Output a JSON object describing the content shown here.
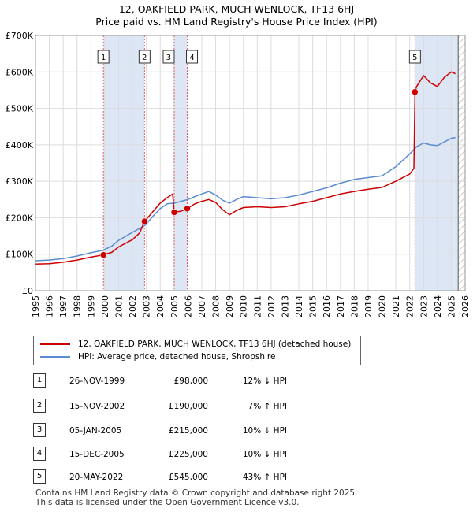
{
  "title_line1": "12, OAKFIELD PARK, MUCH WENLOCK, TF13 6HJ",
  "title_line2": "Price paid vs. HM Land Registry's House Price Index (HPI)",
  "colors": {
    "property": "#cc0000",
    "hpi": "#5b8bd0",
    "shade": "#dde6f5",
    "vline": "#e06060"
  },
  "legend": {
    "property": "12, OAKFIELD PARK, MUCH WENLOCK, TF13 6HJ (detached house)",
    "hpi": "HPI: Average price, detached house, Shropshire"
  },
  "transactions": [
    {
      "marker": "1",
      "date": "26-NOV-1999",
      "price": "£98,000",
      "hpi": "12% ↓ HPI"
    },
    {
      "marker": "2",
      "date": "15-NOV-2002",
      "price": "£190,000",
      "hpi": "7% ↑ HPI"
    },
    {
      "marker": "3",
      "date": "05-JAN-2005",
      "price": "£215,000",
      "hpi": "10% ↓ HPI"
    },
    {
      "marker": "4",
      "date": "15-DEC-2005",
      "price": "£225,000",
      "hpi": "10% ↓ HPI"
    },
    {
      "marker": "5",
      "date": "20-MAY-2022",
      "price": "£545,000",
      "hpi": "43% ↑ HPI"
    }
  ],
  "footer_line1": "Contains HM Land Registry data © Crown copyright and database right 2025.",
  "footer_line2": "This data is licensed under the Open Government Licence v3.0.",
  "chart_data": {
    "type": "line",
    "title": "12, OAKFIELD PARK, MUCH WENLOCK, TF13 6HJ — Price paid vs. HM Land Registry's House Price Index (HPI)",
    "xlabel": "",
    "ylabel": "",
    "xlim": [
      1995,
      2026
    ],
    "ylim": [
      0,
      700000
    ],
    "y_ticks": [
      0,
      100000,
      200000,
      300000,
      400000,
      500000,
      600000,
      700000
    ],
    "y_tick_labels": [
      "£0",
      "£100K",
      "£200K",
      "£300K",
      "£400K",
      "£500K",
      "£600K",
      "£700K"
    ],
    "x_ticks": [
      1995,
      1996,
      1997,
      1998,
      1999,
      2000,
      2001,
      2002,
      2003,
      2004,
      2005,
      2006,
      2007,
      2008,
      2009,
      2010,
      2011,
      2012,
      2013,
      2014,
      2015,
      2016,
      2017,
      2018,
      2019,
      2020,
      2021,
      2022,
      2023,
      2024,
      2025,
      2026
    ],
    "grid": true,
    "sale_points": [
      {
        "label": "1",
        "x": 1999.9,
        "y": 98000
      },
      {
        "label": "2",
        "x": 2002.87,
        "y": 190000
      },
      {
        "label": "3",
        "x": 2005.01,
        "y": 215000
      },
      {
        "label": "4",
        "x": 2005.95,
        "y": 225000
      },
      {
        "label": "5",
        "x": 2022.38,
        "y": 545000
      }
    ],
    "shaded_ranges": [
      [
        1999.9,
        2002.87
      ],
      [
        2005.01,
        2005.95
      ],
      [
        2022.38,
        2025.5
      ]
    ],
    "hatched_after": 2025.5,
    "series": [
      {
        "name": "12, OAKFIELD PARK, MUCH WENLOCK, TF13 6HJ (detached house)",
        "x": [
          1995,
          1996,
          1997,
          1998,
          1999,
          1999.9,
          2000.5,
          2001,
          2002,
          2002.5,
          2002.87,
          2003.5,
          2004,
          2004.5,
          2004.9,
          2005.01,
          2005.5,
          2005.95,
          2006.5,
          2007,
          2007.5,
          2008,
          2008.5,
          2009,
          2009.5,
          2010,
          2011,
          2012,
          2013,
          2014,
          2015,
          2016,
          2017,
          2018,
          2019,
          2020,
          2021,
          2022,
          2022.3,
          2022.38,
          2022.5,
          2023,
          2023.5,
          2024,
          2024.5,
          2025,
          2025.3
        ],
        "values": [
          73000,
          74000,
          78000,
          84000,
          92000,
          98000,
          105000,
          120000,
          140000,
          158000,
          190000,
          218000,
          240000,
          255000,
          265000,
          215000,
          218000,
          225000,
          238000,
          245000,
          250000,
          242000,
          222000,
          208000,
          220000,
          228000,
          230000,
          228000,
          230000,
          238000,
          245000,
          255000,
          265000,
          272000,
          278000,
          283000,
          300000,
          320000,
          335000,
          545000,
          560000,
          590000,
          570000,
          560000,
          585000,
          600000,
          595000
        ]
      },
      {
        "name": "HPI: Average price, detached house, Shropshire",
        "x": [
          1995,
          1996,
          1997,
          1998,
          1999,
          1999.9,
          2000.5,
          2001,
          2002,
          2002.87,
          2003.5,
          2004,
          2004.5,
          2005,
          2005.5,
          2006,
          2006.5,
          2007,
          2007.5,
          2008,
          2008.5,
          2009,
          2009.5,
          2010,
          2011,
          2012,
          2013,
          2014,
          2015,
          2016,
          2017,
          2018,
          2019,
          2020,
          2021,
          2022,
          2022.5,
          2023,
          2023.5,
          2024,
          2024.5,
          2025,
          2025.3
        ],
        "values": [
          82000,
          84000,
          88000,
          95000,
          104000,
          111000,
          122000,
          138000,
          160000,
          178000,
          205000,
          225000,
          238000,
          240000,
          245000,
          250000,
          258000,
          265000,
          272000,
          262000,
          248000,
          240000,
          250000,
          258000,
          255000,
          252000,
          255000,
          262000,
          272000,
          282000,
          295000,
          305000,
          310000,
          315000,
          340000,
          375000,
          395000,
          405000,
          400000,
          398000,
          408000,
          418000,
          420000
        ]
      }
    ]
  }
}
